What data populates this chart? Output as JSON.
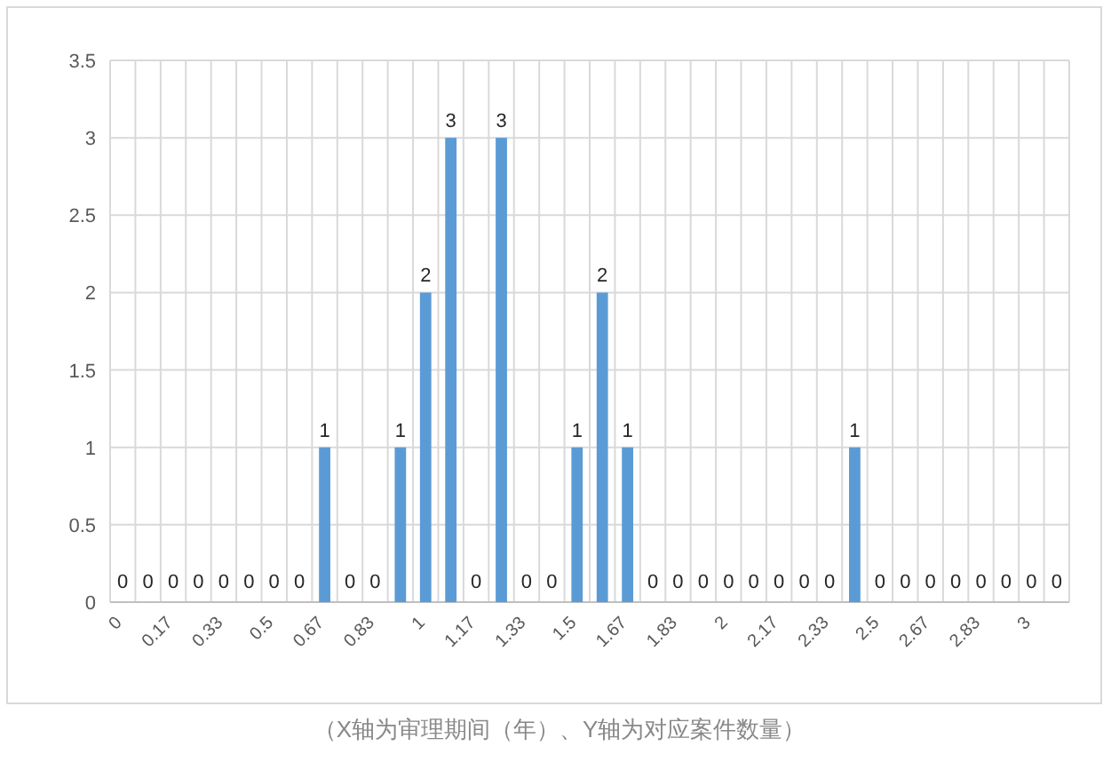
{
  "chart_data": {
    "type": "bar",
    "categories": [
      "0",
      null,
      "0.17",
      null,
      "0.33",
      null,
      "0.5",
      null,
      "0.67",
      null,
      "0.83",
      null,
      "1",
      null,
      "1.17",
      null,
      "1.33",
      null,
      "1.5",
      null,
      "1.67",
      null,
      "1.83",
      null,
      "2",
      null,
      "2.17",
      null,
      "2.33",
      null,
      "2.5",
      null,
      "2.67",
      null,
      "2.83",
      null,
      "3",
      null
    ],
    "values": [
      0,
      0,
      0,
      0,
      0,
      0,
      0,
      0,
      1,
      0,
      0,
      1,
      2,
      3,
      0,
      3,
      0,
      0,
      1,
      2,
      1,
      0,
      0,
      0,
      0,
      0,
      0,
      0,
      0,
      1,
      0,
      0,
      0,
      0,
      0,
      0,
      0,
      0
    ],
    "color": "#5b9bd5",
    "ylim": [
      0,
      3.5
    ],
    "yticks": [
      0,
      0.5,
      1,
      1.5,
      2,
      2.5,
      3,
      3.5
    ],
    "grid": true,
    "data_labels": true,
    "annotations": [
      "（X轴为审理期间（年）、Y轴为对应案件数量）"
    ]
  }
}
